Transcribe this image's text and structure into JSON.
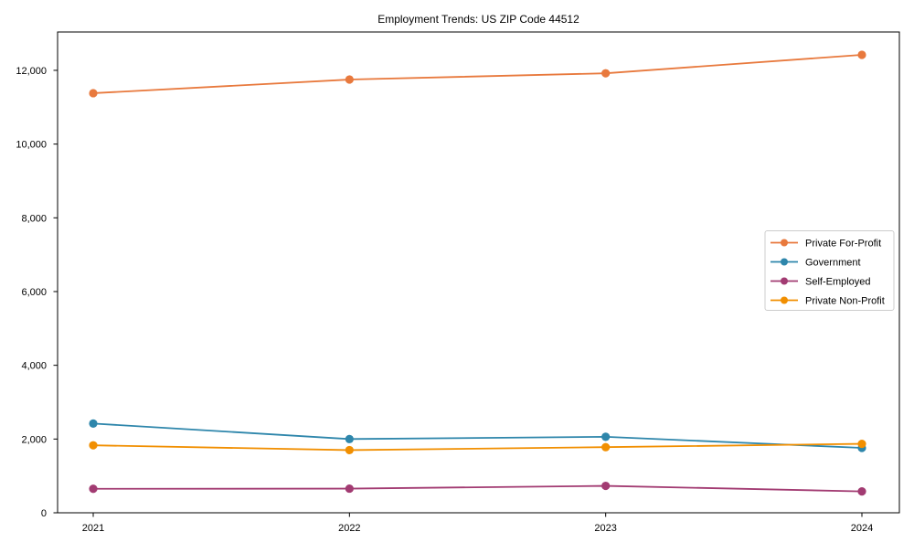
{
  "window": {
    "background_color": "#ffffff"
  },
  "chart_data": {
    "type": "line",
    "title": "Employment Trends: US ZIP Code 44512",
    "x_categories": [
      "2021",
      "2022",
      "2023",
      "2024"
    ],
    "series": [
      {
        "name": "Private For-Profit",
        "color": "#E8793D",
        "values": [
          11380,
          11750,
          11920,
          12420
        ]
      },
      {
        "name": "Government",
        "color": "#2E86AB",
        "values": [
          2420,
          2000,
          2060,
          1760
        ]
      },
      {
        "name": "Self-Employed",
        "color": "#A23B72",
        "values": [
          650,
          655,
          730,
          580
        ]
      },
      {
        "name": "Private Non-Profit",
        "color": "#F18F01",
        "values": [
          1830,
          1700,
          1780,
          1870
        ]
      }
    ],
    "xlabel": "",
    "ylabel": "",
    "ylim": [
      0,
      13040
    ],
    "yticks": [
      0,
      2000,
      4000,
      6000,
      8000,
      10000,
      12000
    ],
    "ytick_labels": [
      "0",
      "2,000",
      "4,000",
      "6,000",
      "8,000",
      "10,000",
      "12,000"
    ],
    "marker": "circle",
    "grid": false,
    "legend_position": "center right",
    "legend_border_color": "#cccccc",
    "axis_color": "#000000"
  }
}
